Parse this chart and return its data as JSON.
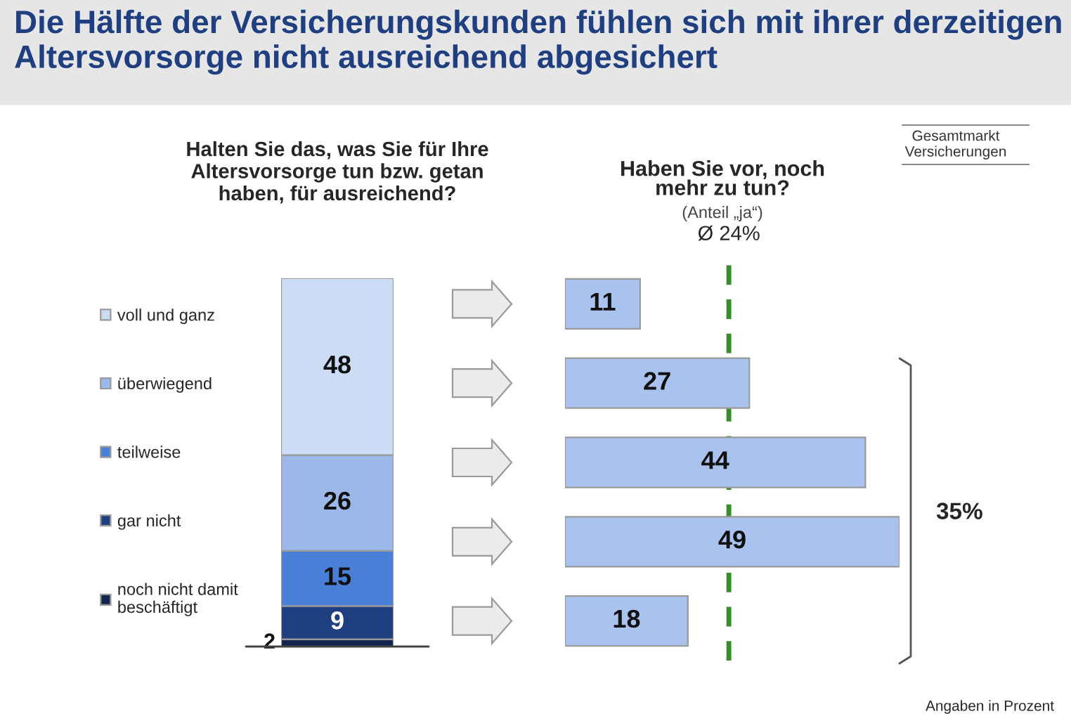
{
  "chart_data": [
    {
      "type": "bar",
      "stacked": true,
      "title": "Die Hälfte der Versicherungskunden fühlen sich mit ihrer derzeitigen Altersvorsorge nicht ausreichend abgesichert",
      "subtitle": "Halten Sie das, was Sie für Ihre\nAltersvorsorge tun bzw. getan\nhaben, für ausreichend?",
      "categories": [
        null
      ],
      "data_labels": true,
      "legend": "left",
      "series": [
        {
          "name": "noch nicht damit\nbeschäftigt",
          "color": "#13244f",
          "values": [
            2
          ]
        },
        {
          "name": "gar nicht",
          "color": "#1f3f80",
          "values": [
            9
          ]
        },
        {
          "name": "teilweise",
          "color": "#4a7fd8",
          "values": [
            15
          ]
        },
        {
          "name": "überwiegend",
          "color": "#9cb8e8",
          "values": [
            26
          ]
        },
        {
          "name": "voll und ganz",
          "color": "#cbdcf4",
          "values": [
            48
          ]
        }
      ],
      "annotations": [
        "Gesamtmarkt\nVersicherungen",
        "Angaben in Prozent"
      ]
    },
    {
      "type": "bar",
      "orientation": "horizontal",
      "title": "Haben Sie vor, noch\nmehr zu tun?",
      "subtitle": "(Anteil „ja“)",
      "categories": [
        null,
        null,
        null,
        null,
        null
      ],
      "values": [
        11,
        27,
        44,
        49,
        18
      ],
      "color": "#a9c2ee",
      "data_labels": true,
      "ref_lines": [
        {
          "axis": "x",
          "value": 24,
          "label": "Ø 24%",
          "color": "#3a8a2e",
          "line_style": "dashed"
        }
      ],
      "annotations": [
        "35%"
      ]
    }
  ]
}
